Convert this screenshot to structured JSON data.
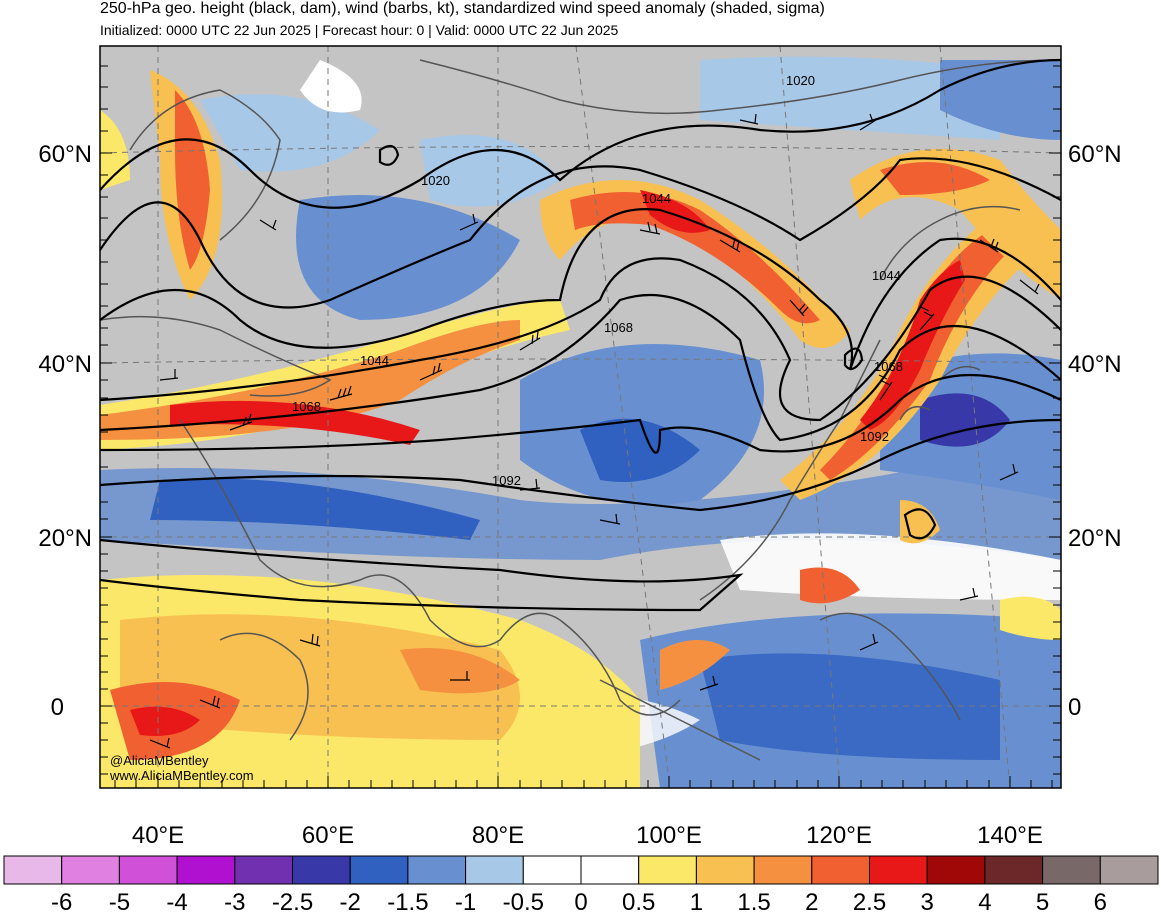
{
  "header": {
    "title": "250-hPa geo. height (black, dam), wind (barbs, kt), standardized wind speed anomaly (shaded, sigma)",
    "subtitle": "Initialized: 0000 UTC 22 Jun 2025 | Forecast hour: 0 | Valid: 0000 UTC 22 Jun 2025"
  },
  "map": {
    "lat_labels": [
      "60°N",
      "40°N",
      "20°N",
      "0"
    ],
    "lon_labels": [
      "40°E",
      "60°E",
      "80°E",
      "100°E",
      "120°E",
      "140°E"
    ],
    "contour_labels": [
      "1020",
      "1020",
      "1044",
      "1044",
      "1044",
      "1068",
      "1068",
      "1068",
      "1092",
      "1092"
    ],
    "credit_handle": "@AliciaMBentley",
    "credit_url": "www.AliciaMBentley.com"
  },
  "colorbar": {
    "colors": [
      "#e8b8e8",
      "#e080e0",
      "#d050d8",
      "#b010d0",
      "#7030b0",
      "#3838a8",
      "#3060c0",
      "#6890d0",
      "#a8c8e8",
      "#ffffff",
      "#ffffff",
      "#fce868",
      "#f8c050",
      "#f49040",
      "#f06030",
      "#e81818",
      "#a00808",
      "#6c2828",
      "#786868",
      "#a89c9c"
    ],
    "tick_labels": [
      "-6",
      "-5",
      "-4",
      "-3",
      "-2.5",
      "-2",
      "-1.5",
      "-1",
      "-0.5",
      "0",
      "0.5",
      "1",
      "1.5",
      "2",
      "2.5",
      "3",
      "4",
      "5",
      "6"
    ]
  }
}
